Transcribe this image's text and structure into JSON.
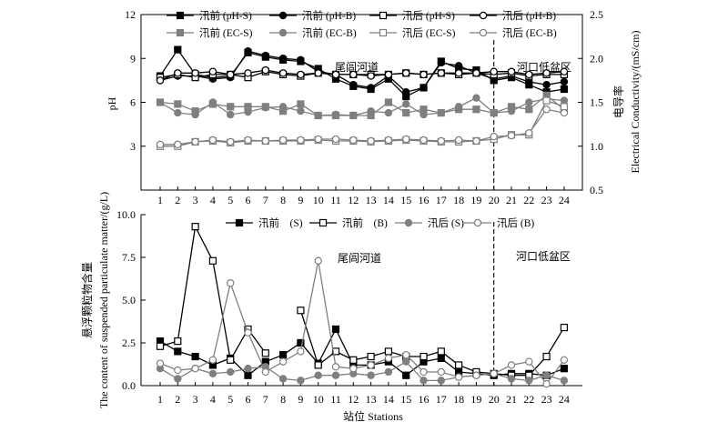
{
  "chart_data": [
    {
      "type": "line",
      "x": [
        1,
        2,
        3,
        4,
        5,
        6,
        7,
        8,
        9,
        10,
        11,
        12,
        13,
        14,
        15,
        16,
        17,
        18,
        19,
        20,
        21,
        22,
        23,
        24
      ],
      "xticks": [
        "1",
        "2",
        "3",
        "4",
        "5",
        "6",
        "7",
        "8",
        "9",
        "10",
        "11",
        "12",
        "13",
        "14",
        "15",
        "16",
        "17",
        "18",
        "19",
        "20",
        "21",
        "22",
        "23",
        "24"
      ],
      "ylabel": "pH",
      "ylim": [
        0,
        12
      ],
      "yticks": [
        "3",
        "6",
        "9",
        "12"
      ],
      "y2label_cn": "电导率",
      "y2label": "Electrical Conductivity/(mS/cm)",
      "y2lim": [
        0.5,
        2.5
      ],
      "y2ticks": [
        "0.5",
        "1.0",
        "1.5",
        "2.0",
        "2.5"
      ],
      "region_labels": [
        "尾闾河道",
        "河口低盆区"
      ],
      "divider_x": 20,
      "series": [
        {
          "name": "汛前 (pH-S)",
          "axis": "left",
          "color": "#000000",
          "marker": "square",
          "fill": true,
          "values": [
            7.8,
            9.6,
            7.9,
            7.7,
            7.8,
            9.4,
            9.1,
            8.9,
            8.8,
            8.3,
            7.6,
            7.1,
            6.9,
            7.6,
            6.4,
            7.0,
            8.8,
            8.3,
            8.2,
            7.5,
            7.7,
            7.2,
            6.7,
            6.9
          ]
        },
        {
          "name": "汛前 (pH-B)",
          "axis": "left",
          "color": "#000000",
          "marker": "circle",
          "fill": true,
          "values": [
            7.5,
            7.8,
            7.8,
            7.6,
            7.7,
            9.5,
            9.2,
            9.0,
            8.9,
            8.1,
            7.9,
            7.2,
            7.0,
            7.8,
            6.7,
            7.0,
            8.7,
            8.5,
            8.0,
            7.6,
            7.8,
            7.4,
            7.2,
            7.4
          ]
        },
        {
          "name": "汛后 (pH-S)",
          "axis": "left",
          "color": "#000000",
          "marker": "square",
          "fill": false,
          "values": [
            7.7,
            7.9,
            7.7,
            7.9,
            7.9,
            7.7,
            8.1,
            7.9,
            7.8,
            8.0,
            7.9,
            7.9,
            7.9,
            7.9,
            8.0,
            7.9,
            8.0,
            7.9,
            8.0,
            7.9,
            8.0,
            7.8,
            7.9,
            7.9
          ]
        },
        {
          "name": "汛后 (pH-B)",
          "axis": "left",
          "color": "#000000",
          "marker": "circle",
          "fill": false,
          "values": [
            7.5,
            8.0,
            8.0,
            8.1,
            7.9,
            8.0,
            8.2,
            8.0,
            7.9,
            8.0,
            7.9,
            7.9,
            7.8,
            7.9,
            8.0,
            7.9,
            8.0,
            8.0,
            8.0,
            8.1,
            8.1,
            7.9,
            8.0,
            8.1
          ]
        },
        {
          "name": "汛前 (EC-S)",
          "axis": "right",
          "color": "#7f7f7f",
          "marker": "square",
          "fill": true,
          "values": [
            1.5,
            1.48,
            1.4,
            1.48,
            1.45,
            1.45,
            1.45,
            1.4,
            1.48,
            1.35,
            1.35,
            1.35,
            1.35,
            1.5,
            1.38,
            1.42,
            1.38,
            1.42,
            1.42,
            1.38,
            1.45,
            1.42,
            1.58,
            1.42
          ]
        },
        {
          "name": "汛前 (EC-B)",
          "axis": "right",
          "color": "#7f7f7f",
          "marker": "circle",
          "fill": true,
          "values": [
            1.5,
            1.38,
            1.36,
            1.5,
            1.36,
            1.39,
            1.44,
            1.45,
            1.4,
            1.35,
            1.36,
            1.35,
            1.4,
            1.38,
            1.48,
            1.36,
            1.38,
            1.45,
            1.55,
            1.38,
            1.4,
            1.5,
            1.54,
            1.52
          ]
        },
        {
          "name": "汛后 (EC-S)",
          "axis": "right",
          "color": "#7f7f7f",
          "marker": "square",
          "fill": false,
          "values": [
            1.0,
            1.0,
            1.05,
            1.06,
            1.04,
            1.06,
            1.06,
            1.06,
            1.06,
            1.07,
            1.06,
            1.06,
            1.05,
            1.06,
            1.07,
            1.06,
            1.05,
            1.05,
            1.06,
            1.08,
            1.13,
            1.13,
            1.52,
            1.45
          ]
        },
        {
          "name": "汛后 (EC-B)",
          "axis": "right",
          "color": "#7f7f7f",
          "marker": "circle",
          "fill": false,
          "values": [
            1.02,
            1.02,
            1.05,
            1.07,
            1.05,
            1.07,
            1.06,
            1.07,
            1.07,
            1.08,
            1.08,
            1.07,
            1.06,
            1.07,
            1.08,
            1.07,
            1.06,
            1.07,
            1.06,
            1.11,
            1.12,
            1.15,
            1.42,
            1.38
          ]
        }
      ]
    },
    {
      "type": "line",
      "x": [
        1,
        2,
        3,
        4,
        5,
        6,
        7,
        8,
        9,
        10,
        11,
        12,
        13,
        14,
        15,
        16,
        17,
        18,
        19,
        20,
        21,
        22,
        23,
        24
      ],
      "xticks": [
        "1",
        "2",
        "3",
        "4",
        "5",
        "6",
        "7",
        "8",
        "9",
        "10",
        "11",
        "12",
        "13",
        "14",
        "15",
        "16",
        "17",
        "18",
        "19",
        "20",
        "21",
        "22",
        "23",
        "24"
      ],
      "xlabel": "站位 Stations",
      "ylabel_cn": "悬浮颗粒物含量",
      "ylabel": "The content of suspended particulate matter/(g/L)",
      "ylim": [
        0,
        10
      ],
      "yticks": [
        "0.0",
        "2.5",
        "5.0",
        "7.5",
        "10.0"
      ],
      "region_labels": [
        "尾闾河道",
        "河口低盆区"
      ],
      "divider_x": 20,
      "series": [
        {
          "name": "汛前　(S)",
          "color": "#000000",
          "marker": "square",
          "fill": true,
          "values": [
            2.6,
            2.0,
            1.7,
            1.2,
            1.6,
            0.6,
            1.4,
            1.8,
            2.5,
            1.3,
            3.3,
            1.2,
            1.2,
            1.4,
            0.6,
            1.4,
            1.6,
            0.8,
            0.7,
            0.6,
            0.7,
            0.7,
            0.6,
            1.0
          ]
        },
        {
          "name": "汛前　(B)",
          "color": "#000000",
          "marker": "square",
          "fill": false,
          "values": [
            2.3,
            2.6,
            9.3,
            7.3,
            1.5,
            3.3,
            1.9,
            null,
            4.4,
            1.2,
            2.0,
            1.5,
            1.7,
            2.0,
            1.7,
            1.7,
            2.0,
            1.2,
            0.8,
            0.7,
            0.6,
            0.6,
            1.7,
            3.4
          ]
        },
        {
          "name": "汛后 (S)",
          "color": "#7f7f7f",
          "marker": "circle",
          "fill": true,
          "values": [
            1.0,
            0.4,
            1.0,
            0.7,
            0.8,
            1.0,
            1.1,
            0.4,
            0.3,
            0.6,
            0.6,
            0.7,
            0.6,
            0.8,
            1.4,
            0.3,
            0.3,
            0.5,
            0.6,
            0.7,
            0.4,
            0.3,
            0.6,
            0.3
          ]
        },
        {
          "name": "汛后 (B)",
          "color": "#7f7f7f",
          "marker": "circle",
          "fill": false,
          "values": [
            1.3,
            0.9,
            1.0,
            1.5,
            6.0,
            3.1,
            0.8,
            1.4,
            2.0,
            7.3,
            1.1,
            1.0,
            1.2,
            1.6,
            1.8,
            0.8,
            0.8,
            0.5,
            0.6,
            0.7,
            1.2,
            1.4,
            0.1,
            1.5
          ]
        }
      ]
    }
  ]
}
